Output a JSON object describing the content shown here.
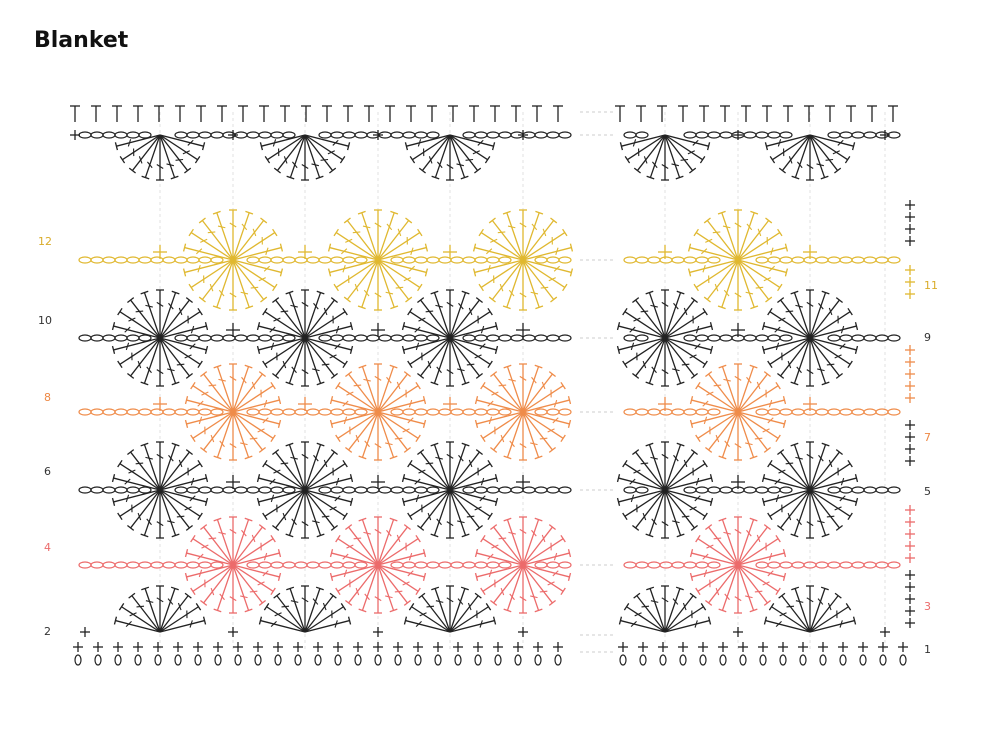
{
  "title": "Blanket",
  "left_rows": [
    "12",
    "10",
    "8",
    "6",
    "4",
    "2"
  ],
  "right_rows": [
    "11",
    "9",
    "7",
    "5",
    "3",
    "1"
  ]
}
